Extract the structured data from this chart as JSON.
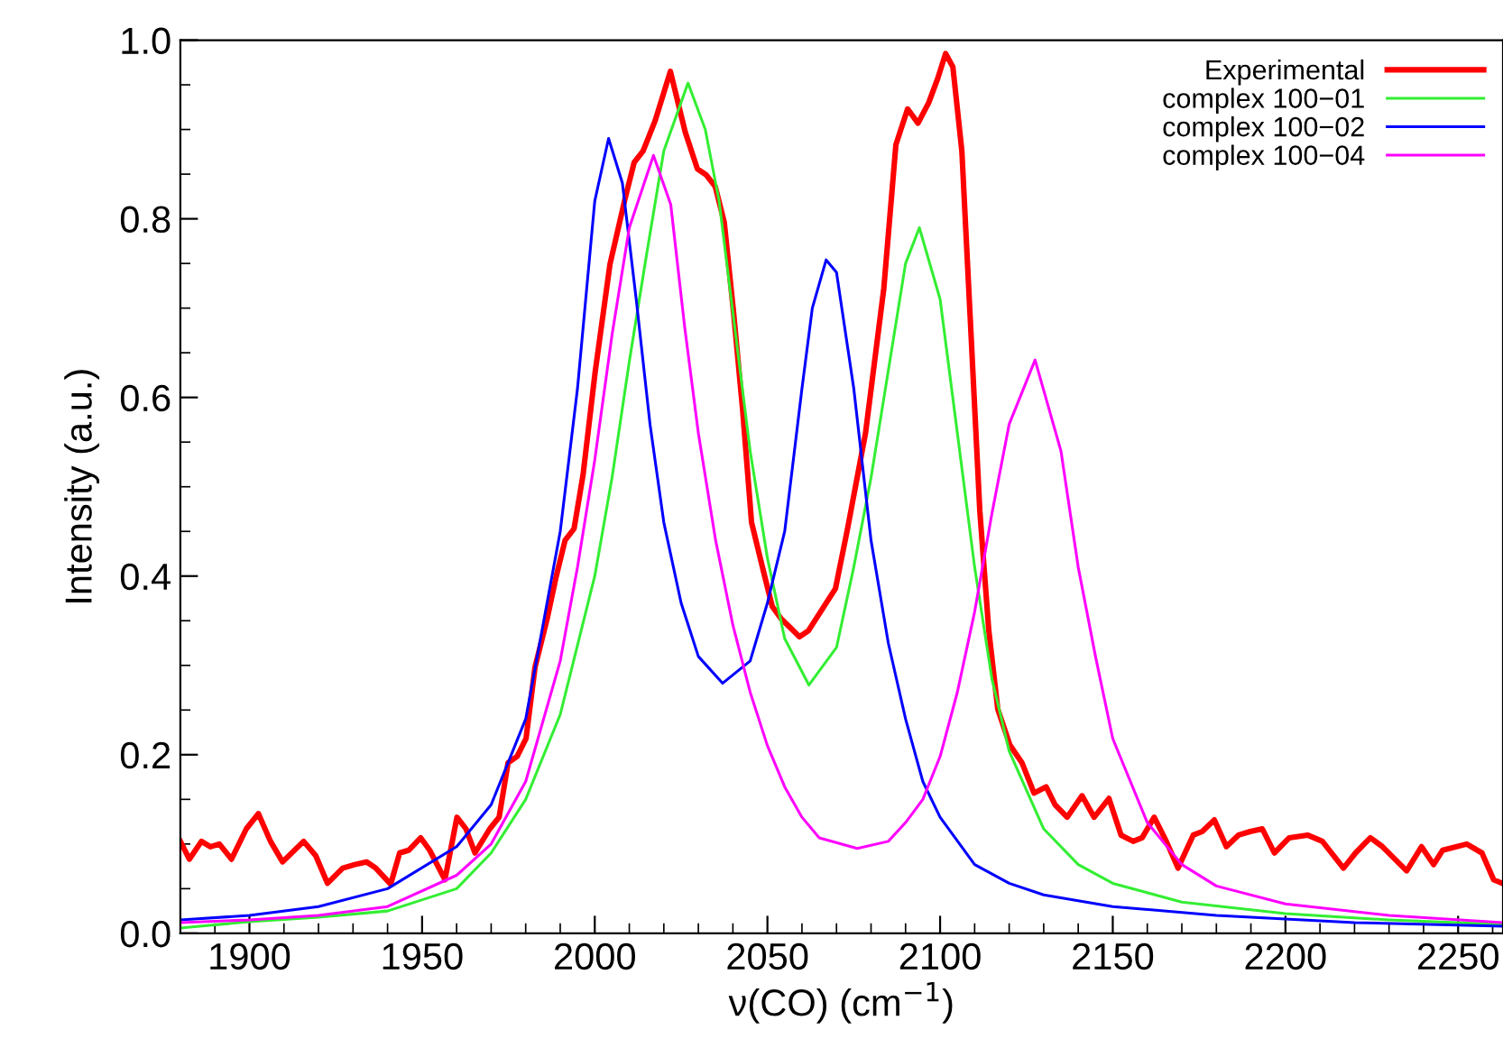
{
  "chart_data": {
    "type": "line",
    "xlabel": "ν(CO) (cm$^{−1}$)",
    "ylabel": "Intensity (a.u.)",
    "xlim": [
      1880,
      2263
    ],
    "ylim": [
      0,
      1.0
    ],
    "xticks": [
      1900,
      1950,
      2000,
      2050,
      2100,
      2150,
      2200,
      2250
    ],
    "yticks": [
      {
        "value": 0,
        "label": "0.0"
      },
      0.2,
      0.4,
      0.6,
      0.8,
      {
        "value": 1.0,
        "label": "1.0"
      }
    ],
    "grid": false,
    "legend": "top right",
    "marker": "none",
    "line_style": "solid",
    "series": [
      {
        "name": "Experimental",
        "color": "#ff0000",
        "x": [
          1880.0,
          1882.6,
          1886.1,
          1888.7,
          1891.3,
          1894.8,
          1899.1,
          1902.6,
          1906.1,
          1909.6,
          1915.7,
          1919.2,
          1922.6,
          1927.0,
          1930.5,
          1933.9,
          1936.6,
          1940.9,
          1943.5,
          1946.1,
          1949.6,
          1952.2,
          1956.6,
          1960.1,
          1962.7,
          1965.3,
          1969.6,
          1972.3,
          1974.9,
          1977.5,
          1980.1,
          1982.7,
          1986.2,
          1988.8,
          1991.4,
          1994.0,
          1996.6,
          2000.1,
          2004.4,
          2008.8,
          2011.4,
          2014.0,
          2017.5,
          2021.9,
          2026.2,
          2029.7,
          2032.3,
          2034.9,
          2037.5,
          2040.2,
          2042.8,
          2045.4,
          2048.8,
          2051.4,
          2054.0,
          2056.7,
          2059.3,
          2061.9,
          2069.7,
          2073.2,
          2078.4,
          2083.7,
          2087.2,
          2090.6,
          2093.6,
          2096.7,
          2099.3,
          2101.6,
          2103.7,
          2106.3,
          2108.9,
          2111.5,
          2114.1,
          2116.7,
          2120.2,
          2123.7,
          2127.2,
          2130.7,
          2133.3,
          2136.8,
          2141.1,
          2144.6,
          2148.9,
          2152.4,
          2155.9,
          2158.5,
          2162.0,
          2165.5,
          2168.9,
          2173.3,
          2175.9,
          2179.4,
          2182.9,
          2186.4,
          2189.8,
          2193.3,
          2196.8,
          2201.1,
          2206.4,
          2210.7,
          2216.8,
          2220.3,
          2224.6,
          2228.1,
          2235.1,
          2239.4,
          2242.9,
          2245.5,
          2252.5,
          2256.9,
          2260.3,
          2262.8
        ],
        "values": [
          0.103,
          0.083,
          0.103,
          0.097,
          0.1,
          0.083,
          0.117,
          0.134,
          0.103,
          0.08,
          0.103,
          0.087,
          0.056,
          0.073,
          0.077,
          0.08,
          0.073,
          0.055,
          0.09,
          0.093,
          0.107,
          0.093,
          0.06,
          0.13,
          0.117,
          0.09,
          0.117,
          0.13,
          0.191,
          0.198,
          0.218,
          0.298,
          0.352,
          0.399,
          0.44,
          0.453,
          0.513,
          0.628,
          0.749,
          0.823,
          0.863,
          0.876,
          0.91,
          0.965,
          0.897,
          0.856,
          0.849,
          0.836,
          0.796,
          0.695,
          0.587,
          0.46,
          0.406,
          0.366,
          0.352,
          0.342,
          0.332,
          0.339,
          0.386,
          0.453,
          0.56,
          0.722,
          0.883,
          0.923,
          0.907,
          0.93,
          0.957,
          0.985,
          0.97,
          0.876,
          0.675,
          0.473,
          0.339,
          0.251,
          0.211,
          0.191,
          0.157,
          0.164,
          0.144,
          0.13,
          0.154,
          0.13,
          0.151,
          0.11,
          0.103,
          0.107,
          0.13,
          0.103,
          0.073,
          0.11,
          0.114,
          0.127,
          0.097,
          0.11,
          0.114,
          0.117,
          0.09,
          0.107,
          0.11,
          0.103,
          0.073,
          0.09,
          0.107,
          0.097,
          0.07,
          0.097,
          0.077,
          0.093,
          0.1,
          0.09,
          0.06,
          0.056
        ]
      },
      {
        "name": "complex 100−01",
        "color": "#33ee33",
        "x": [
          1880,
          1900,
          1920,
          1940,
          1960,
          1970,
          1980,
          1990,
          2000,
          2005,
          2010,
          2015,
          2020,
          2027,
          2032,
          2036,
          2040,
          2045,
          2050,
          2055,
          2062,
          2070,
          2075,
          2080,
          2085,
          2090,
          2094,
          2100,
          2105,
          2110,
          2115,
          2120,
          2130,
          2140,
          2150,
          2170,
          2200,
          2230,
          2263
        ],
        "values": [
          0.006,
          0.013,
          0.018,
          0.025,
          0.05,
          0.09,
          0.15,
          0.245,
          0.4,
          0.51,
          0.64,
          0.76,
          0.876,
          0.952,
          0.9,
          0.82,
          0.695,
          0.54,
          0.42,
          0.33,
          0.278,
          0.32,
          0.41,
          0.51,
          0.63,
          0.75,
          0.79,
          0.71,
          0.56,
          0.41,
          0.285,
          0.204,
          0.117,
          0.077,
          0.056,
          0.035,
          0.022,
          0.015,
          0.01
        ]
      },
      {
        "name": "complex 100−02",
        "color": "#0000ff",
        "x": [
          1880,
          1900,
          1920,
          1940,
          1960,
          1970,
          1980,
          1990,
          1995,
          2000,
          2004,
          2008,
          2012,
          2016,
          2020,
          2025,
          2030,
          2037,
          2045,
          2050,
          2055,
          2060,
          2063,
          2067,
          2070,
          2075,
          2080,
          2085,
          2090,
          2095,
          2100,
          2110,
          2120,
          2130,
          2150,
          2180,
          2220,
          2263
        ],
        "values": [
          0.015,
          0.02,
          0.03,
          0.05,
          0.097,
          0.144,
          0.24,
          0.45,
          0.61,
          0.82,
          0.89,
          0.84,
          0.71,
          0.57,
          0.46,
          0.37,
          0.31,
          0.28,
          0.305,
          0.37,
          0.45,
          0.61,
          0.7,
          0.754,
          0.74,
          0.61,
          0.44,
          0.325,
          0.24,
          0.17,
          0.13,
          0.077,
          0.056,
          0.043,
          0.03,
          0.02,
          0.012,
          0.008
        ]
      },
      {
        "name": "complex 100−04",
        "color": "#ff00ff",
        "x": [
          1880,
          1900,
          1920,
          1940,
          1960,
          1970,
          1980,
          1990,
          1995,
          2000,
          2005,
          2010,
          2017,
          2022,
          2026,
          2030,
          2035,
          2040,
          2045,
          2050,
          2055,
          2060,
          2065,
          2076,
          2085,
          2090,
          2095,
          2100,
          2105,
          2110,
          2115,
          2120,
          2127.5,
          2135,
          2140,
          2145,
          2150,
          2160,
          2170,
          2180,
          2200,
          2230,
          2263
        ],
        "values": [
          0.012,
          0.015,
          0.02,
          0.03,
          0.065,
          0.1,
          0.17,
          0.305,
          0.41,
          0.53,
          0.67,
          0.79,
          0.871,
          0.816,
          0.68,
          0.56,
          0.44,
          0.345,
          0.27,
          0.21,
          0.164,
          0.13,
          0.107,
          0.095,
          0.103,
          0.124,
          0.15,
          0.198,
          0.27,
          0.36,
          0.47,
          0.57,
          0.642,
          0.54,
          0.41,
          0.31,
          0.218,
          0.124,
          0.077,
          0.053,
          0.033,
          0.02,
          0.012
        ]
      }
    ]
  }
}
